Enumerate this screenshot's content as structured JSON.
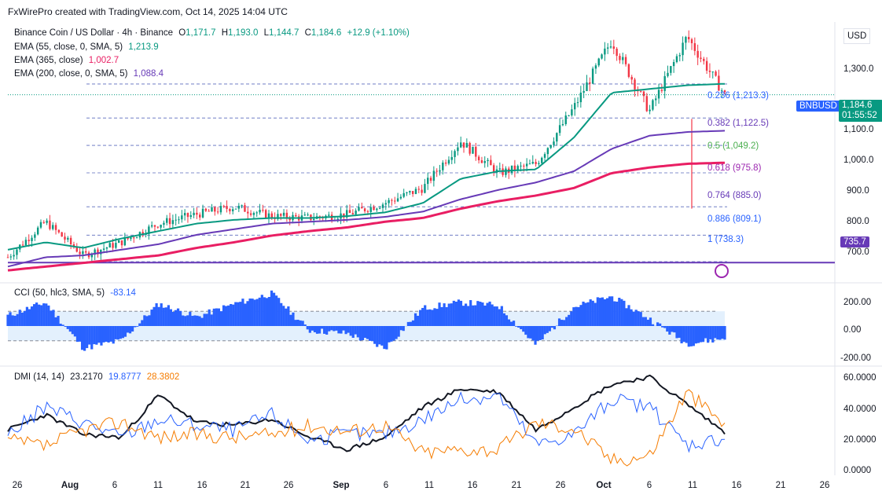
{
  "header": {
    "credit": "FxWirePro created with TradingView.com, Oct 14, 2025 14:04 UTC"
  },
  "currency": "USD",
  "symbol": {
    "title": "Binance Coin / US Dollar · 4h · Binance",
    "open_label": "O",
    "open": "1,171.7",
    "high_label": "H",
    "high": "1,193.0",
    "low_label": "L",
    "low": "1,144.7",
    "close_label": "C",
    "close": "1,184.6",
    "change": "+12.9 (+1.10%)",
    "ticker": "BNBUSD",
    "last_price": "1,184.6",
    "countdown": "01:55:52"
  },
  "indicators": {
    "ema55": {
      "label": "EMA (55, close, 0, SMA, 5)",
      "value": "1,213.9"
    },
    "ema365": {
      "label": "EMA (365, close)",
      "value": "1,002.7"
    },
    "ema200": {
      "label": "EMA (200, close, 0, SMA, 5)",
      "value": "1,088.4"
    },
    "cci": {
      "label": "CCI (50, hlc3, SMA, 5)",
      "value": "-83.14"
    },
    "dmi": {
      "label": "DMI (14, 14)",
      "adx": "23.2170",
      "plus_di": "19.8777",
      "minus_di": "28.3802"
    }
  },
  "hline_label": "735.7",
  "fib_levels": [
    {
      "ratio": "0.236",
      "price": 1213.3,
      "text": "0.236 (1,213.3)"
    },
    {
      "ratio": "0.382",
      "price": 1122.5,
      "text": "0.382 (1,122.5)"
    },
    {
      "ratio": "0.5",
      "price": 1049.2,
      "text": "0.5 (1,049.2)"
    },
    {
      "ratio": "0.618",
      "price": 975.8,
      "text": "0.618 (975.8)"
    },
    {
      "ratio": "0.764",
      "price": 885.0,
      "text": "0.764 (885.0)"
    },
    {
      "ratio": "0.886",
      "price": 809.1,
      "text": "0.886 (809.1)"
    },
    {
      "ratio": "1",
      "price": 738.3,
      "text": "1 (738.3)"
    }
  ],
  "price_axis": [
    "1,300.0",
    "1,100.0",
    "1,000.0",
    "900.0",
    "800.0",
    "700.0"
  ],
  "cci_axis": [
    "200.00",
    "0.00",
    "-200.00"
  ],
  "dmi_axis": [
    "60.0000",
    "40.0000",
    "20.0000",
    "0.0000"
  ],
  "x_axis": [
    "26",
    "Aug",
    "6",
    "11",
    "16",
    "21",
    "26",
    "Sep",
    "6",
    "11",
    "16",
    "21",
    "26",
    "Oct",
    "6",
    "11",
    "16",
    "21",
    "26"
  ],
  "colors": {
    "ema55": "#089981",
    "ema365": "#e91e63",
    "ema200": "#673ab7",
    "up": "#089981",
    "down": "#f23645",
    "cci": "#2962ff",
    "adx": "#131722",
    "plus_di": "#2962ff",
    "minus_di": "#f57c00",
    "hline": "#673ab7"
  },
  "chart_data": [
    {
      "type": "candlestick",
      "title": "Binance Coin / US Dollar · 4h · Binance",
      "ylim": [
        690,
        1375
      ],
      "x": [
        "Jul 24",
        "Jul 30",
        "Aug 4",
        "Aug 9",
        "Aug 14",
        "Aug 19",
        "Aug 24",
        "Aug 29",
        "Sep 3",
        "Sep 8",
        "Sep 13",
        "Sep 18",
        "Sep 22",
        "Sep 26",
        "Sep 30",
        "Oct 4",
        "Oct 8",
        "Oct 11",
        "Oct 13",
        "Oct 14"
      ],
      "price": [
        750,
        845,
        755,
        790,
        840,
        865,
        885,
        860,
        855,
        865,
        895,
        935,
        1060,
        975,
        1000,
        1150,
        1330,
        1140,
        1340,
        1184.6
      ],
      "series": [
        {
          "name": "EMA (55, close, 0, SMA, 5)",
          "values": [
            770,
            790,
            775,
            800,
            820,
            840,
            850,
            855,
            855,
            860,
            870,
            895,
            960,
            980,
            985,
            1070,
            1190,
            1200,
            1210,
            1213.9
          ]
        },
        {
          "name": "EMA (200, close, 0, SMA, 5)",
          "values": [
            725,
            750,
            755,
            770,
            785,
            810,
            825,
            840,
            845,
            850,
            858,
            872,
            905,
            930,
            950,
            980,
            1040,
            1075,
            1085,
            1088.4
          ]
        },
        {
          "name": "EMA (365, close)",
          "values": [
            715,
            725,
            735,
            745,
            755,
            775,
            790,
            808,
            820,
            830,
            845,
            855,
            880,
            900,
            915,
            935,
            975,
            990,
            1000,
            1002.7
          ]
        }
      ],
      "hlines": [
        735.7
      ],
      "fib_levels": [
        1213.3,
        1122.5,
        1049.2,
        975.8,
        885.0,
        809.1,
        738.3
      ]
    },
    {
      "type": "bar",
      "title": "CCI (50, hlc3, SMA, 5)",
      "ylim": [
        -250,
        250
      ],
      "bands": [
        100,
        -100
      ],
      "x": [
        "Jul 24",
        "Jul 28",
        "Aug 2",
        "Aug 6",
        "Aug 11",
        "Aug 15",
        "Aug 20",
        "Aug 24",
        "Aug 28",
        "Sep 2",
        "Sep 6",
        "Sep 11",
        "Sep 15",
        "Sep 20",
        "Sep 25",
        "Sep 29",
        "Oct 3",
        "Oct 7",
        "Oct 11",
        "Oct 14"
      ],
      "values": [
        70,
        160,
        -150,
        -100,
        150,
        60,
        150,
        220,
        -30,
        -50,
        -150,
        120,
        160,
        140,
        -130,
        130,
        200,
        50,
        -120,
        -83.14
      ]
    },
    {
      "type": "line",
      "title": "DMI (14, 14)",
      "ylim": [
        -5,
        65
      ],
      "x": [
        "Jul 24",
        "Jul 28",
        "Aug 2",
        "Aug 6",
        "Aug 11",
        "Aug 15",
        "Aug 20",
        "Aug 24",
        "Aug 28",
        "Sep 2",
        "Sep 6",
        "Sep 11",
        "Sep 15",
        "Sep 20",
        "Sep 25",
        "Sep 29",
        "Oct 3",
        "Oct 7",
        "Oct 11",
        "Oct 14"
      ],
      "series": [
        {
          "name": "ADX",
          "values": [
            25,
            35,
            22,
            20,
            48,
            30,
            28,
            32,
            20,
            12,
            20,
            40,
            52,
            50,
            25,
            40,
            55,
            60,
            42,
            23.217
          ]
        },
        {
          "name": "+DI",
          "values": [
            22,
            40,
            30,
            20,
            32,
            28,
            25,
            35,
            18,
            22,
            22,
            32,
            45,
            48,
            15,
            22,
            45,
            40,
            15,
            19.8777
          ]
        },
        {
          "name": "-DI",
          "values": [
            18,
            14,
            25,
            30,
            20,
            22,
            20,
            22,
            28,
            24,
            28,
            10,
            12,
            12,
            30,
            26,
            5,
            8,
            50,
            28.3802
          ]
        }
      ]
    }
  ]
}
